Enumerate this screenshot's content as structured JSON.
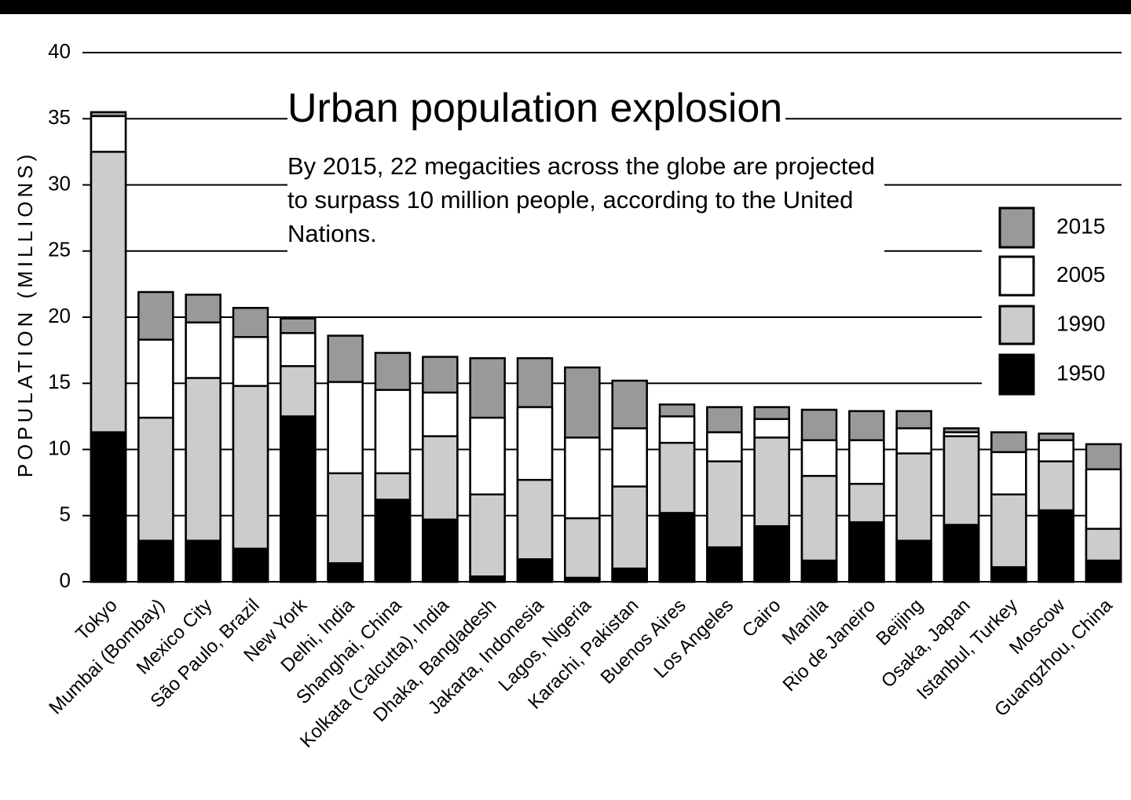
{
  "chart_data": {
    "type": "overlapping_bar",
    "title": "Urban population explosion",
    "subtitle": "By 2015, 22 megacities across the globe are projected to surpass 10 million people, according to the United Nations.",
    "y_label": "POPULATION (MILLIONS)",
    "categories": [
      "Tokyo",
      "Mumbai (Bombay)",
      "Mexico City",
      "São Paulo, Brazil",
      "New York",
      "Delhi, India",
      "Shanghai, China",
      "Kolkata (Calcutta), India",
      "Dhaka, Bangladesh",
      "Jakarta, Indonesia",
      "Lagos, Nigeria",
      "Karachi, Pakistan",
      "Buenos Aires",
      "Los Angeles",
      "Cairo",
      "Manila",
      "Rio de Janeiro",
      "Beijing",
      "Osaka, Japan",
      "Istanbul, Turkey",
      "Moscow",
      "Guangzhou, China"
    ],
    "series": [
      {
        "name": "2015",
        "color": "#999999",
        "values": [
          35.5,
          21.9,
          21.7,
          20.7,
          19.9,
          18.6,
          17.3,
          17.0,
          16.9,
          16.9,
          16.2,
          15.2,
          13.4,
          13.2,
          13.2,
          13.0,
          12.9,
          12.9,
          11.6,
          11.3,
          11.2,
          10.4
        ]
      },
      {
        "name": "2005",
        "color": "#ffffff",
        "values": [
          35.2,
          18.3,
          19.6,
          18.5,
          18.8,
          15.1,
          14.5,
          14.3,
          12.4,
          13.2,
          10.9,
          11.6,
          12.5,
          11.3,
          12.3,
          10.7,
          10.7,
          11.6,
          11.3,
          9.8,
          10.7,
          8.5
        ]
      },
      {
        "name": "1990",
        "color": "#cccccc",
        "values": [
          32.5,
          12.4,
          15.4,
          14.8,
          16.3,
          8.2,
          8.2,
          11.0,
          6.6,
          7.7,
          4.8,
          7.2,
          10.5,
          9.1,
          10.9,
          8.0,
          7.4,
          9.7,
          11.0,
          6.6,
          9.1,
          4.0
        ]
      },
      {
        "name": "1950",
        "color": "#000000",
        "values": [
          11.3,
          3.1,
          3.1,
          2.5,
          12.5,
          1.4,
          6.2,
          4.7,
          0.4,
          1.7,
          0.3,
          1.0,
          5.2,
          2.6,
          4.2,
          1.6,
          4.5,
          3.1,
          4.3,
          1.1,
          5.4,
          1.6
        ]
      }
    ],
    "ylim": [
      0,
      40
    ],
    "yticks": [
      0,
      5,
      10,
      15,
      20,
      25,
      30,
      35,
      40
    ],
    "grid": true
  }
}
